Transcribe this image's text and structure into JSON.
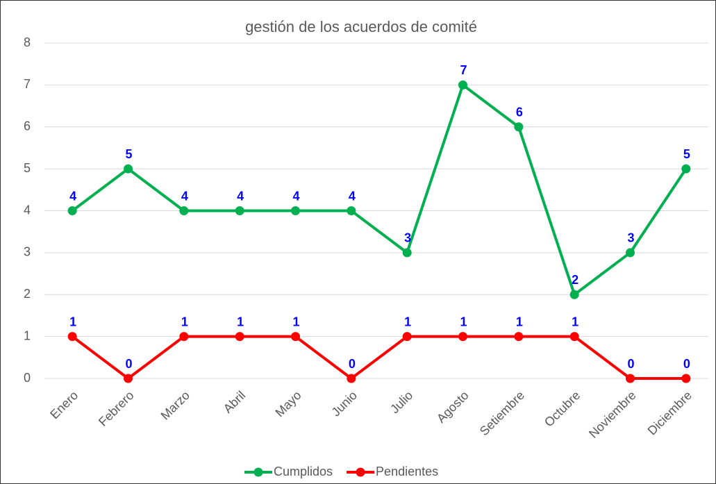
{
  "chart_data": {
    "type": "line",
    "title": "gestión de los acuerdos de comité",
    "categories": [
      "Enero",
      "Febrero",
      "Marzo",
      "Abril",
      "Mayo",
      "Junio",
      "Julio",
      "Agosto",
      "Setiembre",
      "Octubre",
      "Noviembre",
      "Diciembre"
    ],
    "series": [
      {
        "name": "Cumplidos",
        "color": "#00b050",
        "values": [
          4,
          5,
          4,
          4,
          4,
          4,
          3,
          7,
          6,
          2,
          3,
          5
        ]
      },
      {
        "name": "Pendientes",
        "color": "#ff0000",
        "values": [
          1,
          0,
          1,
          1,
          1,
          0,
          1,
          1,
          1,
          1,
          0,
          0
        ]
      }
    ],
    "ylim": [
      0,
      8
    ],
    "yticks": [
      0,
      1,
      2,
      3,
      4,
      5,
      6,
      7,
      8
    ],
    "grid": true,
    "legend": "bottom",
    "label_color": "#0000ff"
  }
}
